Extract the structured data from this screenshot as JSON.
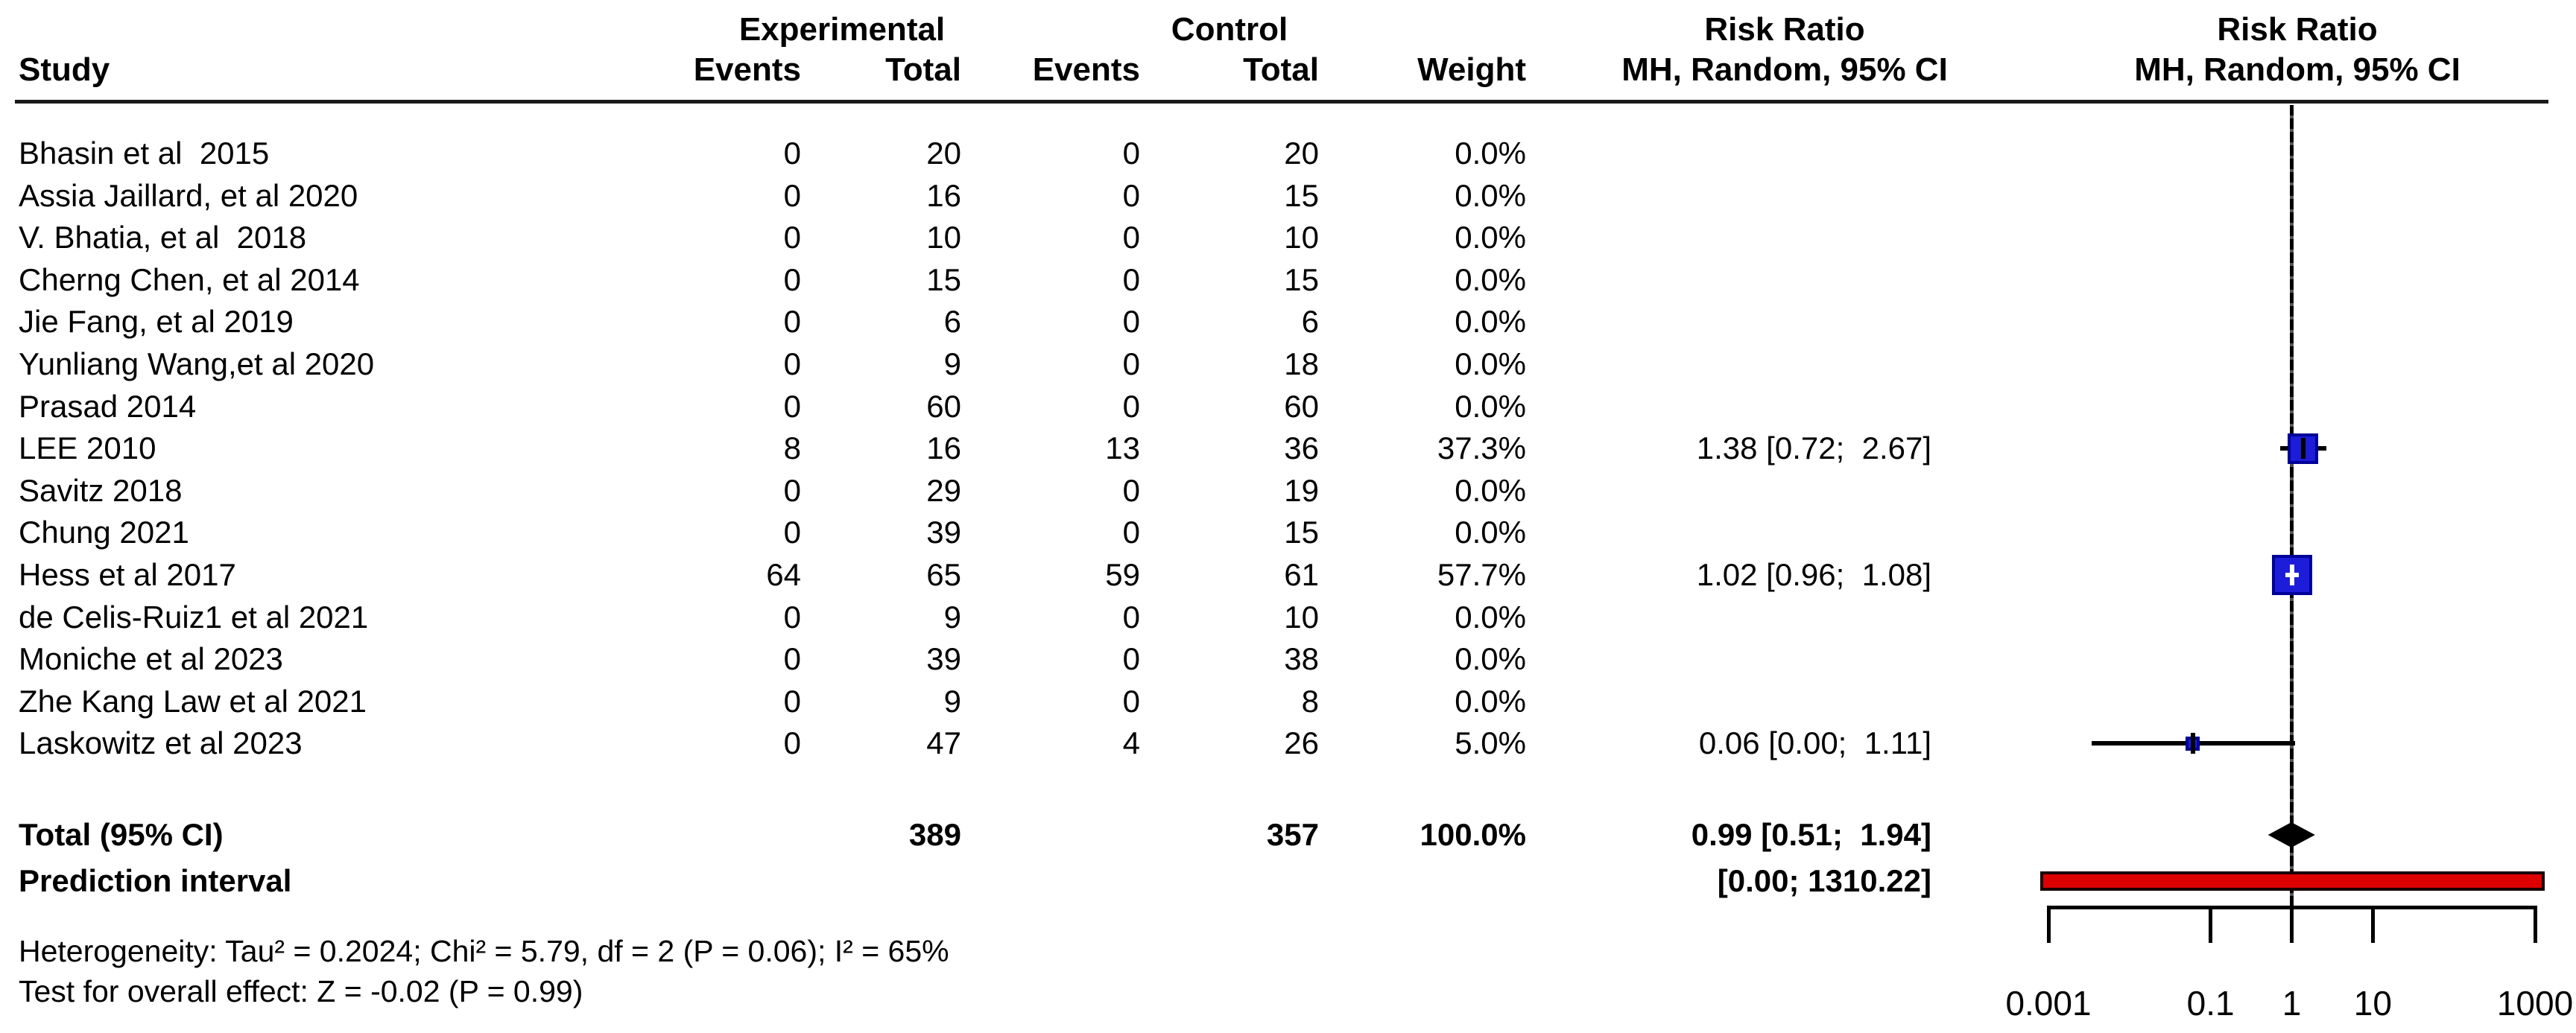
{
  "chart_data": {
    "type": "forest",
    "title": "",
    "effect_measure": "Risk Ratio",
    "pooling_model": "MH, Random, 95% CI",
    "columns": {
      "study": "Study",
      "experimental_group": "Experimental",
      "control_group": "Control",
      "exp_events": "Events",
      "exp_total": "Total",
      "ctrl_events": "Events",
      "ctrl_total": "Total",
      "weight": "Weight",
      "rr_line1": "Risk Ratio",
      "rr_line2": "MH, Random, 95% CI",
      "plot_line1": "Risk Ratio",
      "plot_line2": "MH, Random, 95% CI"
    },
    "studies": [
      {
        "study": "Bhasin et al  2015",
        "exp_events": "0",
        "exp_total": "20",
        "ctrl_events": "0",
        "ctrl_total": "20",
        "weight": "0.0%",
        "weight_pct": 0,
        "ci_text": "",
        "rr": null,
        "ci_low": null,
        "ci_high": null
      },
      {
        "study": "Assia Jaillard, et al 2020",
        "exp_events": "0",
        "exp_total": "16",
        "ctrl_events": "0",
        "ctrl_total": "15",
        "weight": "0.0%",
        "weight_pct": 0,
        "ci_text": "",
        "rr": null,
        "ci_low": null,
        "ci_high": null
      },
      {
        "study": "V. Bhatia, et al  2018",
        "exp_events": "0",
        "exp_total": "10",
        "ctrl_events": "0",
        "ctrl_total": "10",
        "weight": "0.0%",
        "weight_pct": 0,
        "ci_text": "",
        "rr": null,
        "ci_low": null,
        "ci_high": null
      },
      {
        "study": "Cherng Chen, et al 2014",
        "exp_events": "0",
        "exp_total": "15",
        "ctrl_events": "0",
        "ctrl_total": "15",
        "weight": "0.0%",
        "weight_pct": 0,
        "ci_text": "",
        "rr": null,
        "ci_low": null,
        "ci_high": null
      },
      {
        "study": "Jie Fang, et al 2019",
        "exp_events": "0",
        "exp_total": "6",
        "ctrl_events": "0",
        "ctrl_total": "6",
        "weight": "0.0%",
        "weight_pct": 0,
        "ci_text": "",
        "rr": null,
        "ci_low": null,
        "ci_high": null
      },
      {
        "study": "Yunliang Wang,et al 2020",
        "exp_events": "0",
        "exp_total": "9",
        "ctrl_events": "0",
        "ctrl_total": "18",
        "weight": "0.0%",
        "weight_pct": 0,
        "ci_text": "",
        "rr": null,
        "ci_low": null,
        "ci_high": null
      },
      {
        "study": "Prasad 2014",
        "exp_events": "0",
        "exp_total": "60",
        "ctrl_events": "0",
        "ctrl_total": "60",
        "weight": "0.0%",
        "weight_pct": 0,
        "ci_text": "",
        "rr": null,
        "ci_low": null,
        "ci_high": null
      },
      {
        "study": "LEE 2010",
        "exp_events": "8",
        "exp_total": "16",
        "ctrl_events": "13",
        "ctrl_total": "36",
        "weight": "37.3%",
        "weight_pct": 37.3,
        "ci_text": "1.38 [0.72;  2.67]",
        "rr": 1.38,
        "ci_low": 0.72,
        "ci_high": 2.67,
        "ci_low_draw": 0.72,
        "tick": "black"
      },
      {
        "study": "Savitz 2018",
        "exp_events": "0",
        "exp_total": "29",
        "ctrl_events": "0",
        "ctrl_total": "19",
        "weight": "0.0%",
        "weight_pct": 0,
        "ci_text": "",
        "rr": null,
        "ci_low": null,
        "ci_high": null
      },
      {
        "study": "Chung 2021",
        "exp_events": "0",
        "exp_total": "39",
        "ctrl_events": "0",
        "ctrl_total": "15",
        "weight": "0.0%",
        "weight_pct": 0,
        "ci_text": "",
        "rr": null,
        "ci_low": null,
        "ci_high": null
      },
      {
        "study": "Hess et al 2017",
        "exp_events": "64",
        "exp_total": "65",
        "ctrl_events": "59",
        "ctrl_total": "61",
        "weight": "57.7%",
        "weight_pct": 57.7,
        "ci_text": "1.02 [0.96;  1.08]",
        "rr": 1.02,
        "ci_low": 0.96,
        "ci_high": 1.08,
        "ci_low_draw": 0.96,
        "tick": "white"
      },
      {
        "study": "de Celis-Ruiz1 et al 2021",
        "exp_events": "0",
        "exp_total": "9",
        "ctrl_events": "0",
        "ctrl_total": "10",
        "weight": "0.0%",
        "weight_pct": 0,
        "ci_text": "",
        "rr": null,
        "ci_low": null,
        "ci_high": null
      },
      {
        "study": "Moniche et al 2023",
        "exp_events": "0",
        "exp_total": "39",
        "ctrl_events": "0",
        "ctrl_total": "38",
        "weight": "0.0%",
        "weight_pct": 0,
        "ci_text": "",
        "rr": null,
        "ci_low": null,
        "ci_high": null
      },
      {
        "study": "Zhe Kang Law et al 2021",
        "exp_events": "0",
        "exp_total": "9",
        "ctrl_events": "0",
        "ctrl_total": "8",
        "weight": "0.0%",
        "weight_pct": 0,
        "ci_text": "",
        "rr": null,
        "ci_low": null,
        "ci_high": null
      },
      {
        "study": "Laskowitz et al 2023",
        "exp_events": "0",
        "exp_total": "47",
        "ctrl_events": "4",
        "ctrl_total": "26",
        "weight": "5.0%",
        "weight_pct": 5.0,
        "ci_text": "0.06 [0.00;  1.11]",
        "rr": 0.06,
        "ci_low": 0.0,
        "ci_high": 1.11,
        "ci_low_draw": 0.0034,
        "tick": "black"
      }
    ],
    "total_row": {
      "label": "Total (95% CI)",
      "exp_total": "389",
      "ctrl_total": "357",
      "weight": "100.0%",
      "ci_text": "0.99 [0.51;  1.94]",
      "rr": 0.99,
      "ci_low": 0.51,
      "ci_high": 1.94
    },
    "prediction_row": {
      "label": "Prediction interval",
      "ci_text": "[0.00; 1310.22]",
      "low_draw": 0.0008,
      "high_draw": 1310.22
    },
    "x_axis": {
      "scale": "log",
      "min": 0.001,
      "max": 1000,
      "ticks": [
        0.001,
        0.1,
        1,
        10,
        1000
      ],
      "tick_labels": [
        "0.001",
        "0.1",
        "1",
        "10",
        "1000"
      ],
      "reference_line": 1
    },
    "footnotes": [
      "Heterogeneity: Tau² = 0.2024; Chi² = 5.79, df = 2 (P = 0.06); I² = 65%",
      "Test for overall effect: Z = -0.02 (P = 0.99)"
    ],
    "colors": {
      "square_fill": "#1c1cd9",
      "square_border": "#000099",
      "diamond": "#000000",
      "prediction_bar_fill": "#dd0000",
      "prediction_bar_border": "#1a0000",
      "line": "#000000"
    }
  }
}
